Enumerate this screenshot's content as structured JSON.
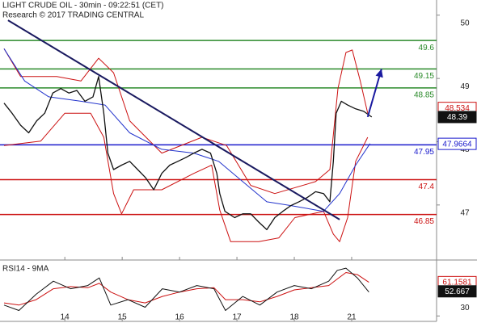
{
  "chart_data": {
    "type": "line",
    "title": "LIGHT CRUDE OIL - 30min - 09:22:51 (CET)",
    "subtitle": "Research © 2017 TRADING CENTRAL",
    "xlim": [
      -0.13,
      7.48
    ],
    "xticks": [
      {
        "value": 1,
        "label": "14"
      },
      {
        "value": 2,
        "label": "15"
      },
      {
        "value": 3,
        "label": "16"
      },
      {
        "value": 4,
        "label": "17"
      },
      {
        "value": 5,
        "label": "18"
      },
      {
        "value": 6,
        "label": "21"
      }
    ],
    "ylim": [
      46.13,
      50.24
    ],
    "yticks": [
      50,
      49,
      48,
      47
    ],
    "series": [
      {
        "color": "#cc1111",
        "width": 1,
        "x": [
          -0.06,
          0.23,
          0.86,
          1.28,
          1.59,
          1.85,
          2.13,
          2.69,
          3.39,
          3.82,
          4.24,
          4.66,
          5.37,
          5.62,
          5.76,
          5.9,
          6.01,
          6.15,
          6.28
        ],
        "values": [
          49.47,
          49.03,
          49.03,
          48.96,
          49.32,
          49.09,
          48.33,
          47.82,
          48.07,
          47.94,
          47.31,
          47.18,
          47.37,
          47.56,
          48.84,
          49.41,
          49.45,
          48.96,
          48.45
        ]
      },
      {
        "color": "#cc1111",
        "width": 1,
        "x": [
          -0.06,
          0.58,
          1.0,
          1.45,
          1.68,
          1.85,
          1.99,
          2.2,
          2.69,
          3.25,
          3.56,
          3.7,
          3.89,
          4.38,
          4.73,
          5.01,
          5.51,
          5.68,
          5.79,
          5.93,
          6.07,
          6.28
        ],
        "values": [
          47.94,
          48.01,
          48.45,
          48.45,
          48.07,
          47.18,
          46.86,
          47.24,
          47.24,
          47.5,
          47.63,
          46.92,
          46.42,
          46.42,
          46.48,
          46.8,
          46.9,
          46.54,
          46.42,
          46.8,
          47.69,
          48.07
        ]
      },
      {
        "color": "#2233cc",
        "width": 1,
        "x": [
          -0.06,
          0.3,
          0.72,
          1.28,
          1.7,
          2.13,
          2.69,
          3.25,
          3.68,
          4.1,
          4.52,
          4.94,
          5.51,
          5.79,
          6.07,
          6.32
        ],
        "values": [
          49.47,
          48.96,
          48.71,
          48.64,
          48.58,
          48.14,
          47.88,
          47.82,
          47.69,
          47.37,
          47.05,
          46.99,
          46.9,
          47.18,
          47.63,
          47.97
        ]
      },
      {
        "color": "#111111",
        "width": 1.3,
        "x": [
          -0.06,
          0.08,
          0.23,
          0.37,
          0.51,
          0.65,
          0.79,
          0.93,
          1.07,
          1.21,
          1.35,
          1.49,
          1.59,
          1.68,
          1.75,
          1.85,
          1.99,
          2.13,
          2.27,
          2.41,
          2.55,
          2.69,
          2.83,
          2.97,
          3.11,
          3.25,
          3.39,
          3.54,
          3.65,
          3.7,
          3.79,
          3.96,
          4.1,
          4.24,
          4.38,
          4.52,
          4.66,
          4.8,
          4.94,
          5.08,
          5.23,
          5.37,
          5.51,
          5.62,
          5.68,
          5.73,
          5.82,
          5.93,
          6.07,
          6.21,
          6.35
        ],
        "values": [
          48.61,
          48.45,
          48.26,
          48.14,
          48.33,
          48.45,
          48.77,
          48.84,
          48.77,
          48.81,
          48.64,
          48.71,
          49.03,
          48.45,
          47.82,
          47.56,
          47.63,
          47.69,
          47.56,
          47.43,
          47.24,
          47.5,
          47.63,
          47.69,
          47.75,
          47.82,
          47.88,
          47.82,
          47.5,
          47.18,
          46.9,
          46.8,
          46.86,
          46.86,
          46.73,
          46.61,
          46.8,
          46.9,
          46.99,
          47.05,
          47.12,
          47.21,
          47.18,
          47.05,
          47.69,
          48.45,
          48.64,
          48.58,
          48.52,
          48.48,
          48.39
        ]
      }
    ],
    "levels": [
      {
        "value": 49.6,
        "color": "#2a8a2a"
      },
      {
        "value": 49.15,
        "color": "#2a8a2a"
      },
      {
        "value": 48.85,
        "color": "#2a8a2a"
      },
      {
        "value": 47.95,
        "color": "#1a1acc"
      },
      {
        "value": 47.4,
        "color": "#cc1111"
      },
      {
        "value": 46.85,
        "color": "#cc1111"
      }
    ],
    "trendline": {
      "color": "#1a1a60",
      "x": [
        0.01,
        5.79
      ],
      "values": [
        49.92,
        46.77
      ]
    },
    "arrow": {
      "color": "#1a1aa0",
      "x": [
        6.28,
        6.52
      ],
      "values": [
        48.39,
        49.15
      ]
    },
    "tags": [
      {
        "value": 48.534,
        "color": "#cc1111",
        "filled": false
      },
      {
        "value": 48.39,
        "color": "#111111",
        "filled": true
      },
      {
        "value": 47.9664,
        "color": "#1a1acc",
        "filled": false
      }
    ],
    "rsi": {
      "title": "RSI14 - 9MA",
      "ylim": [
        25,
        80
      ],
      "yticks": [
        30
      ],
      "series": [
        {
          "color": "#cc1111",
          "x": [
            -0.06,
            0.2,
            0.5,
            0.8,
            1.1,
            1.4,
            1.6,
            1.8,
            2.1,
            2.4,
            2.7,
            3.0,
            3.3,
            3.6,
            3.8,
            4.1,
            4.4,
            4.7,
            5.0,
            5.3,
            5.6,
            5.75,
            5.9,
            6.1,
            6.3
          ],
          "values": [
            42,
            40,
            45,
            55,
            57,
            56,
            60,
            52,
            45,
            42,
            48,
            52,
            55,
            56,
            45,
            45,
            43,
            48,
            54,
            56,
            58,
            64,
            70,
            68,
            61
          ]
        },
        {
          "color": "#111111",
          "x": [
            -0.06,
            0.2,
            0.5,
            0.8,
            1.1,
            1.4,
            1.6,
            1.8,
            2.1,
            2.4,
            2.7,
            3.0,
            3.3,
            3.6,
            3.8,
            4.1,
            4.4,
            4.7,
            5.0,
            5.3,
            5.6,
            5.75,
            5.9,
            6.1,
            6.3
          ],
          "values": [
            40,
            35,
            50,
            62,
            55,
            58,
            65,
            40,
            45,
            38,
            55,
            52,
            58,
            55,
            35,
            48,
            40,
            52,
            58,
            55,
            62,
            72,
            74,
            65,
            52
          ]
        }
      ],
      "tags": [
        {
          "value": 61.1581,
          "color": "#cc1111",
          "filled": false
        },
        {
          "value": 52.667,
          "color": "#111111",
          "filled": true
        }
      ]
    }
  }
}
